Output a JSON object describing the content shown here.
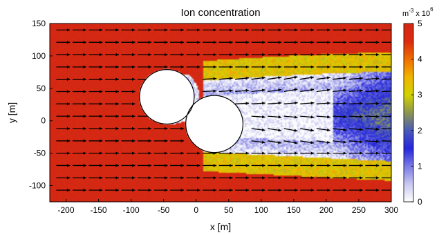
{
  "chart_data": {
    "type": "heatmap",
    "title": "Ion concentration",
    "xlabel": "x [m]",
    "ylabel": "y [m]",
    "xlim": [
      -225,
      300
    ],
    "ylim": [
      -125,
      150
    ],
    "xticks": [
      -200,
      -150,
      -100,
      -50,
      0,
      50,
      100,
      150,
      200,
      250,
      300
    ],
    "yticks": [
      -100,
      -50,
      0,
      50,
      100,
      150
    ],
    "colorbar": {
      "label_base": "m",
      "label_exp": "-3",
      "label_mid": " x 10",
      "label_scale": "6",
      "min": 0,
      "max": 5,
      "ticks": [
        0,
        1,
        2,
        3,
        4,
        5
      ],
      "colors": [
        "#ffffff",
        "#c8c8f0",
        "#7a7ae6",
        "#2626dc",
        "#4a5ab8",
        "#8c9650",
        "#d2d200",
        "#f0b400",
        "#f06e00",
        "#dc2a10",
        "#d22814"
      ]
    },
    "background_level": 5,
    "obstacle": {
      "shape": "two overlapping circles (peanut)",
      "circle_1": {
        "center": [
          -45,
          37
        ],
        "radius": 42
      },
      "circle_2": {
        "center": [
          28,
          -5
        ],
        "radius": 44
      },
      "color": "#ffffff"
    },
    "wake": {
      "direction": "+x",
      "depleted_level": 0,
      "edge_level": 2,
      "enhanced_edge_level": 3.2
    },
    "vector_field": {
      "component": "flow direction",
      "color": "#000000",
      "dominant_direction": "+x"
    },
    "grid": false
  }
}
